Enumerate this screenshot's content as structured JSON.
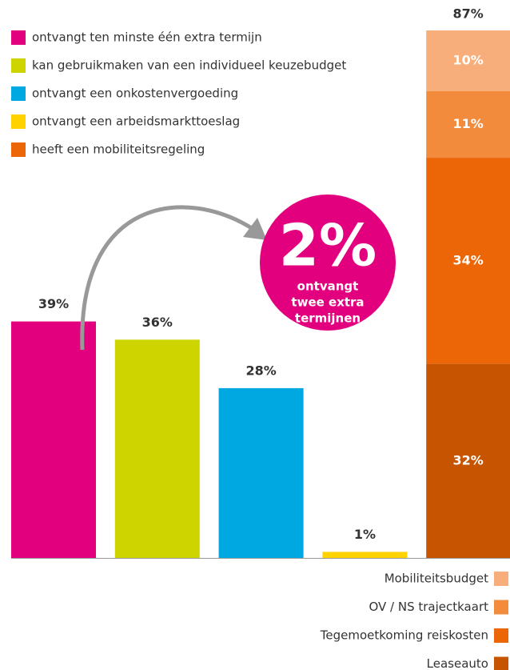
{
  "chart_data": {
    "type": "bar",
    "categories": [
      "ontvangt ten minste één extra termijn",
      "kan gebruikmaken van een individueel keuzebudget",
      "ontvangt een onkostenvergoeding",
      "ontvangt een arbeidsmarkttoeslag",
      "heeft een mobiliteitsregeling"
    ],
    "colors": [
      "#e3007e",
      "#cdd400",
      "#00a8e1",
      "#ffd200",
      "#ec6608"
    ],
    "values": [
      39,
      36,
      28,
      1,
      87
    ],
    "value_labels": [
      "39%",
      "36%",
      "28%",
      "1%",
      "87%"
    ],
    "breakdown": {
      "categories": [
        "Mobiliteitsbudget",
        "OV / NS trajectkaart",
        "Tegemoetkoming reiskosten",
        "Leaseauto"
      ],
      "colors": [
        "#f7ae7a",
        "#f28c3c",
        "#ec6608",
        "#c65400"
      ],
      "values": [
        10,
        11,
        34,
        32
      ],
      "value_labels": [
        "10%",
        "11%",
        "34%",
        "32%"
      ]
    },
    "annotation": {
      "value": 2,
      "value_label": "2%",
      "lines": [
        "ontvangt",
        "twee extra",
        "termijnen"
      ]
    }
  }
}
